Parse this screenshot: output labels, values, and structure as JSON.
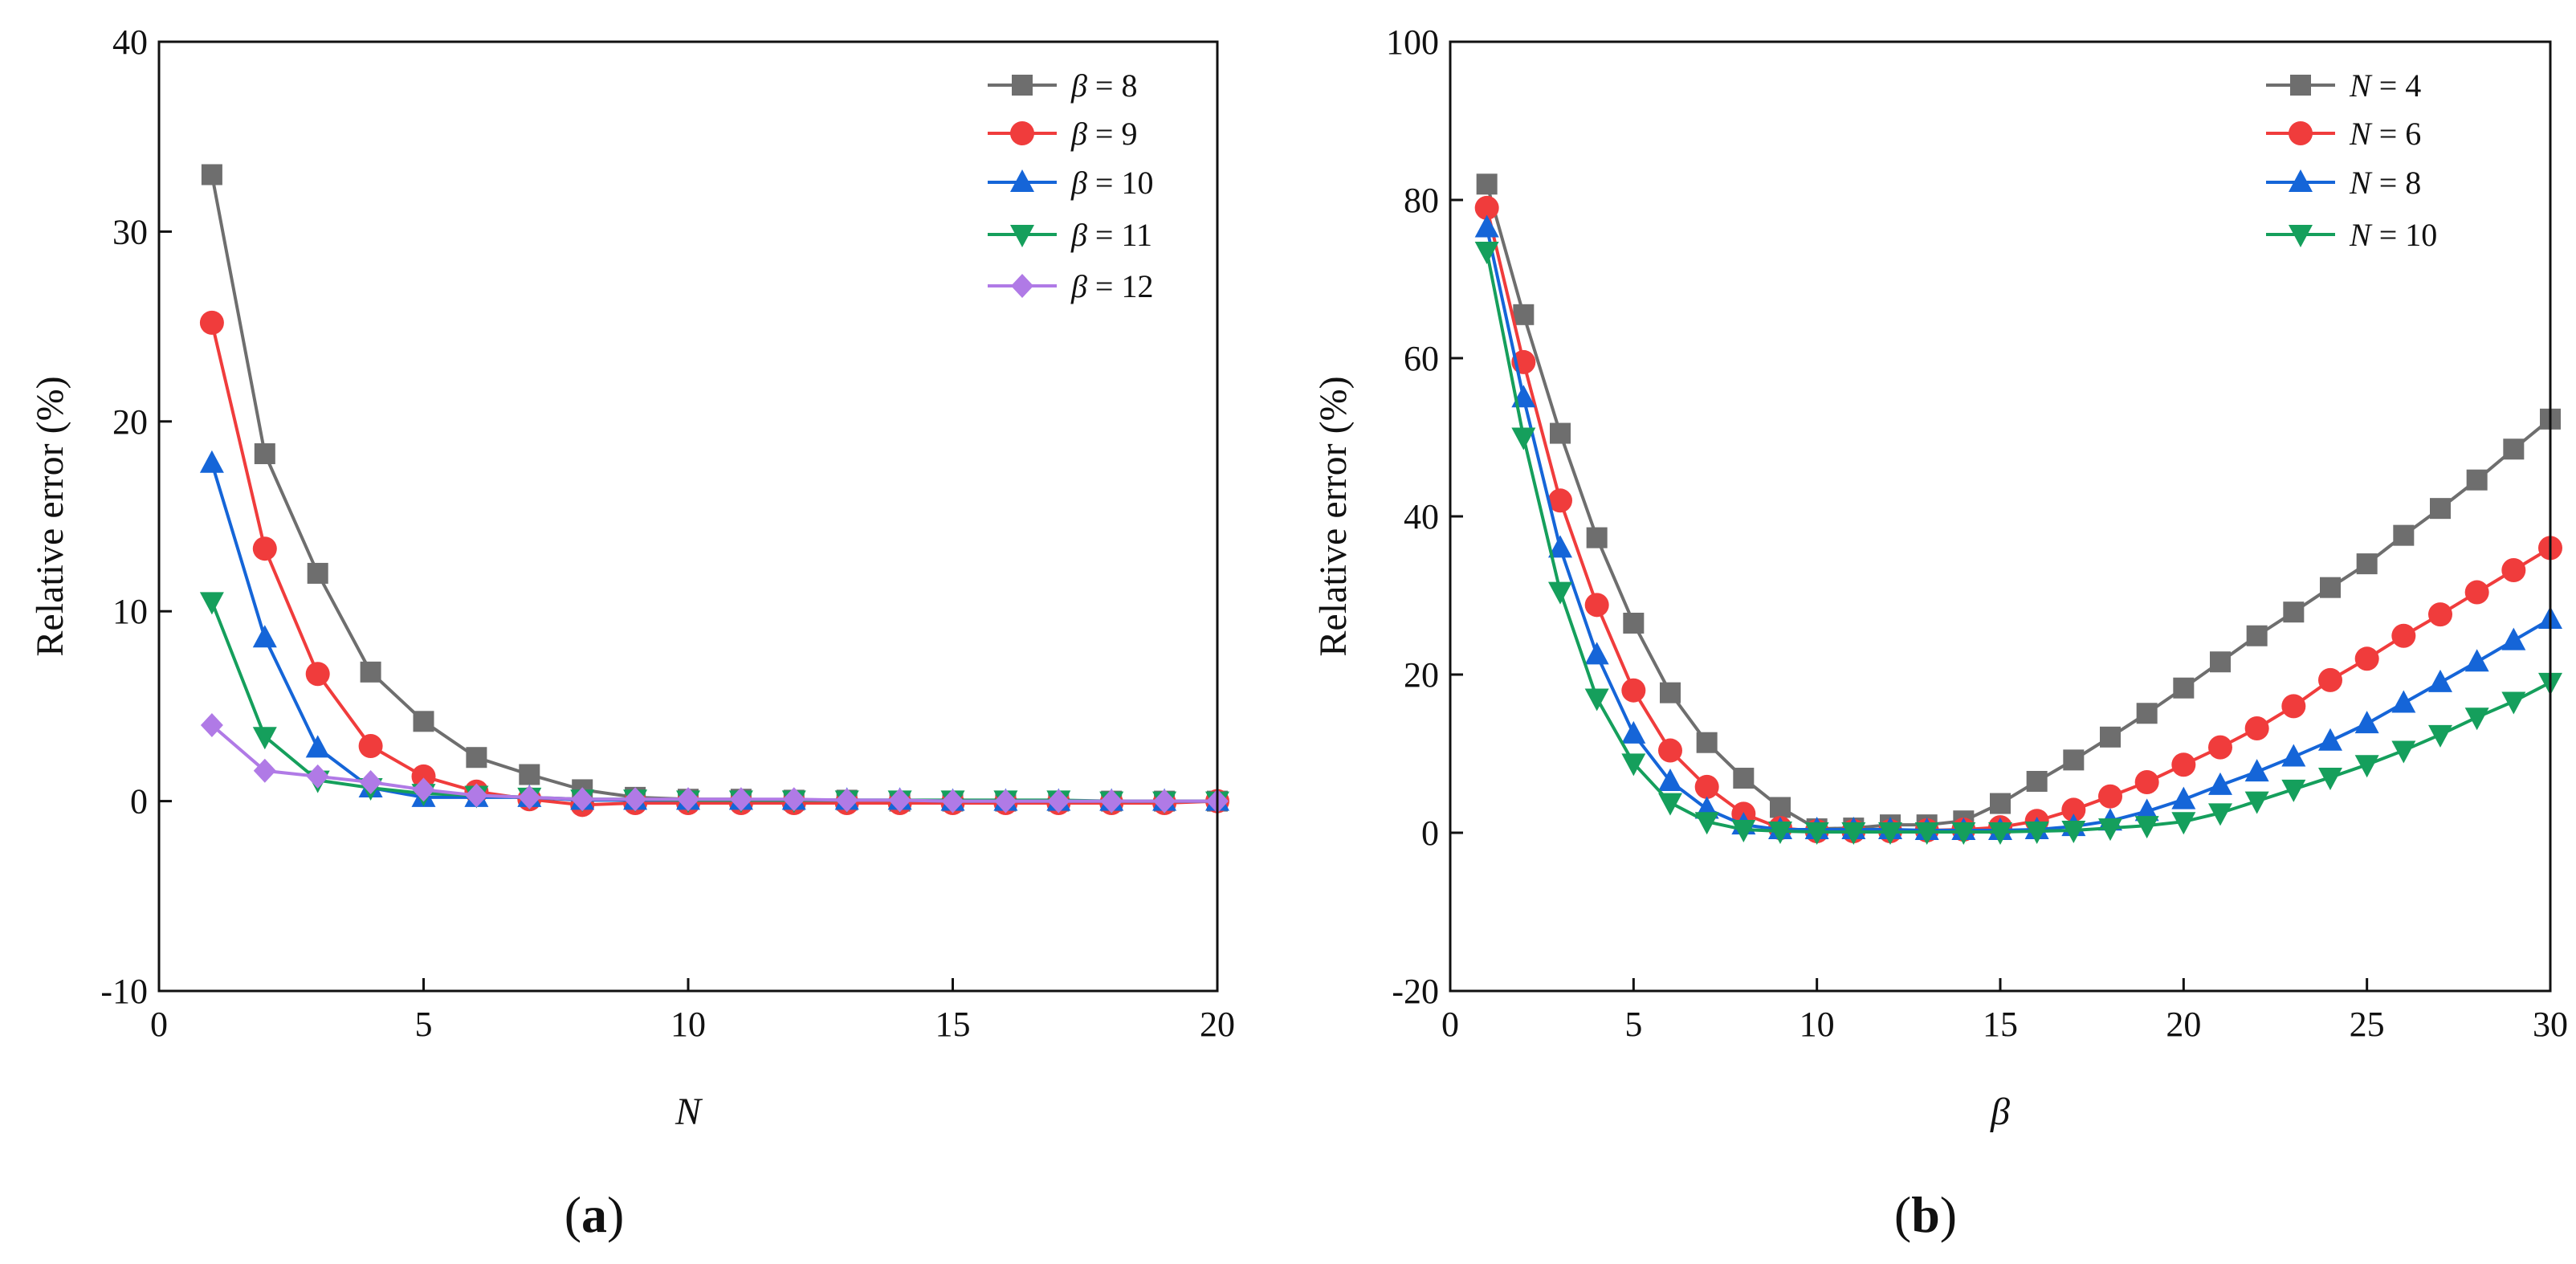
{
  "chart_data": [
    {
      "type": "line",
      "panel_label": "(a)",
      "panel_label_parts": [
        "(",
        "a",
        ")"
      ],
      "xlabel": "N",
      "ylabel": "Relative error (%)",
      "xlim": [
        0,
        20
      ],
      "ylim": [
        -10,
        40
      ],
      "xticks": [
        0,
        5,
        10,
        15,
        20
      ],
      "yticks": [
        -10,
        0,
        10,
        20,
        30,
        40
      ],
      "legend_position": "top-right",
      "x": [
        1,
        2,
        3,
        4,
        5,
        6,
        7,
        8,
        9,
        10,
        11,
        12,
        13,
        14,
        15,
        16,
        17,
        18,
        19,
        20
      ],
      "series": [
        {
          "name": "β = 8",
          "legend_var": "β",
          "legend_value": "= 8",
          "color": "#6e6e6e",
          "marker": "square",
          "values": [
            33.0,
            18.3,
            12.0,
            6.8,
            4.2,
            2.3,
            1.4,
            0.6,
            0.2,
            0.1,
            0.1,
            0.05,
            0.05,
            0.0,
            0.0,
            0.0,
            0.0,
            0.0,
            0.0,
            0.0
          ]
        },
        {
          "name": "β = 9",
          "legend_var": "β",
          "legend_value": "= 9",
          "color": "#f03c3c",
          "marker": "circle",
          "values": [
            25.2,
            13.3,
            6.7,
            2.9,
            1.3,
            0.5,
            0.1,
            -0.2,
            -0.1,
            -0.1,
            -0.1,
            -0.1,
            -0.1,
            -0.1,
            -0.1,
            -0.1,
            -0.1,
            -0.1,
            -0.1,
            0.0
          ]
        },
        {
          "name": "β = 10",
          "legend_var": "β",
          "legend_value": "= 10",
          "color": "#1565d8",
          "marker": "triangle-up",
          "values": [
            17.8,
            8.6,
            2.8,
            0.7,
            0.2,
            0.2,
            0.2,
            0.05,
            0.05,
            0.05,
            0.05,
            0.05,
            0.05,
            0.05,
            0.0,
            0.0,
            0.0,
            0.0,
            0.0,
            0.0
          ]
        },
        {
          "name": "β = 11",
          "legend_var": "β",
          "legend_value": "= 11",
          "color": "#159f5c",
          "marker": "triangle-down",
          "values": [
            10.5,
            3.4,
            1.1,
            0.7,
            0.4,
            0.3,
            0.2,
            0.1,
            0.1,
            0.05,
            0.05,
            0.05,
            0.05,
            0.05,
            0.05,
            0.05,
            0.05,
            0.0,
            0.0,
            0.0
          ]
        },
        {
          "name": "β = 12",
          "legend_var": "β",
          "legend_value": "= 12",
          "color": "#b07ae6",
          "marker": "diamond",
          "values": [
            4.0,
            1.6,
            1.3,
            1.0,
            0.6,
            0.3,
            0.2,
            0.1,
            0.1,
            0.1,
            0.1,
            0.1,
            0.05,
            0.05,
            0.0,
            0.0,
            0.0,
            0.0,
            0.0,
            0.0
          ]
        }
      ]
    },
    {
      "type": "line",
      "panel_label": "(b)",
      "panel_label_parts": [
        "(",
        "b",
        ")"
      ],
      "xlabel": "β",
      "ylabel": "Relative error (%)",
      "xlim": [
        0,
        30
      ],
      "ylim": [
        -20,
        100
      ],
      "xticks": [
        0,
        5,
        10,
        15,
        20,
        25,
        30
      ],
      "yticks": [
        -20,
        0,
        20,
        40,
        60,
        80,
        100
      ],
      "legend_position": "top-right",
      "x": [
        1,
        2,
        3,
        4,
        5,
        6,
        7,
        8,
        9,
        10,
        11,
        12,
        13,
        14,
        15,
        16,
        17,
        18,
        19,
        20,
        21,
        22,
        23,
        24,
        25,
        26,
        27,
        28,
        29,
        30
      ],
      "series": [
        {
          "name": "N = 4",
          "legend_var": "N",
          "legend_value": "= 4",
          "color": "#6e6e6e",
          "marker": "square",
          "values": [
            82,
            65.5,
            50.5,
            37.3,
            26.5,
            17.7,
            11.4,
            6.9,
            3.2,
            0.5,
            0.6,
            1.0,
            1.0,
            1.5,
            3.7,
            6.5,
            9.2,
            12.1,
            15.1,
            18.3,
            21.6,
            24.9,
            27.9,
            31.0,
            34.0,
            37.6,
            41.0,
            44.6,
            48.5,
            52.3
          ]
        },
        {
          "name": "N = 6",
          "legend_var": "N",
          "legend_value": "= 6",
          "color": "#f03c3c",
          "marker": "circle",
          "values": [
            79,
            59.5,
            42.0,
            28.8,
            18.0,
            10.4,
            5.8,
            2.4,
            0.6,
            0.2,
            0.2,
            0.2,
            0.3,
            0.4,
            0.7,
            1.5,
            2.9,
            4.6,
            6.4,
            8.6,
            10.8,
            13.2,
            16.0,
            19.3,
            22.0,
            24.9,
            27.6,
            30.4,
            33.2,
            36.0
          ]
        },
        {
          "name": "N = 8",
          "legend_var": "N",
          "legend_value": "= 8",
          "color": "#1565d8",
          "marker": "triangle-up",
          "values": [
            76.5,
            55.0,
            36.0,
            22.5,
            12.5,
            6.5,
            3.0,
            1.0,
            0.4,
            0.4,
            0.4,
            0.4,
            0.3,
            0.3,
            0.3,
            0.4,
            0.8,
            1.5,
            2.7,
            4.2,
            6.0,
            7.7,
            9.6,
            11.6,
            13.8,
            16.4,
            19.0,
            21.6,
            24.3,
            27.0
          ]
        },
        {
          "name": "N = 10",
          "legend_var": "N",
          "legend_value": "= 10",
          "color": "#159f5c",
          "marker": "triangle-down",
          "values": [
            73.5,
            50.0,
            30.5,
            17.0,
            8.8,
            3.8,
            1.4,
            0.4,
            0.2,
            0.1,
            0.1,
            0.1,
            0.1,
            0.1,
            0.1,
            0.2,
            0.3,
            0.6,
            0.9,
            1.4,
            2.5,
            4.0,
            5.5,
            7.0,
            8.6,
            10.4,
            12.4,
            14.6,
            16.6,
            19.0
          ]
        }
      ]
    }
  ]
}
